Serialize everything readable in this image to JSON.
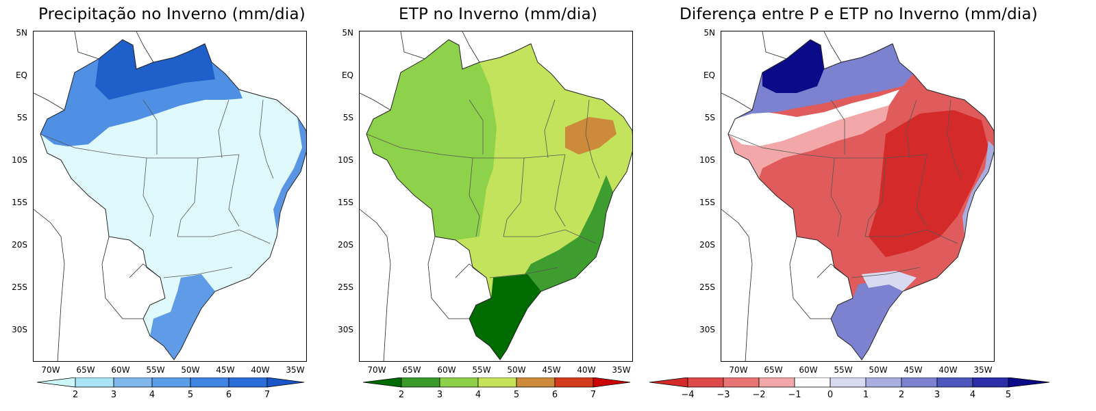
{
  "panels": [
    {
      "title": "Precipitação no Inverno (mm/dia)",
      "colorbar": {
        "labels": [
          "2",
          "3",
          "4",
          "5",
          "6",
          "7"
        ],
        "colors": [
          "#cdf6fb",
          "#a9e3f6",
          "#80b8ee",
          "#5a9ee8",
          "#3f84e2",
          "#2b6dd8",
          "#1a56c8"
        ]
      },
      "colors": {
        "background": "#dff9fc",
        "north_band": "#4f8fe4",
        "north_core": "#1f5fc9",
        "south": "#5f9be6",
        "coast": "#5a95e4"
      }
    },
    {
      "title": "ETP no Inverno (mm/dia)",
      "colorbar": {
        "labels": [
          "2",
          "3",
          "4",
          "5",
          "6",
          "7"
        ],
        "colors": [
          "#006b00",
          "#3a9a2a",
          "#8fd04a",
          "#c6e35a",
          "#cd8a3a",
          "#d43a1c",
          "#cc0000"
        ]
      },
      "colors": {
        "background": "#c3e35c",
        "west": "#8ed14b",
        "north": "#8ed14b",
        "ne_hot": "#cd8a3a",
        "se": "#3f9c2e",
        "south": "#006b00"
      }
    },
    {
      "title": "Diferença entre P e ETP no Inverno (mm/dia)",
      "colorbar": {
        "labels": [
          "−4",
          "−3",
          "−2",
          "−1",
          "0",
          "1",
          "2",
          "3",
          "4",
          "5"
        ],
        "colors": [
          "#d42a2a",
          "#de4a4a",
          "#e87474",
          "#f2a8a8",
          "#ffffff",
          "#d8daf1",
          "#a9aee0",
          "#7c82cf",
          "#4d56bd",
          "#2a2fa8",
          "#0b0b8a"
        ]
      },
      "colors": {
        "background": "#e05b5b",
        "core": "#d42a2a",
        "light": "#f2a8a8",
        "north_band": "#ffffff",
        "north": "#4f56bd",
        "north_core": "#0b0b8a",
        "south": "#7c82cf",
        "coast": "#a9aee0"
      }
    }
  ],
  "map": {
    "lat_ticks": [
      "5N",
      "EQ",
      "5S",
      "10S",
      "15S",
      "20S",
      "25S",
      "30S"
    ],
    "lon_ticks": [
      "70W",
      "65W",
      "60W",
      "55W",
      "50W",
      "45W",
      "40W",
      "35W"
    ]
  }
}
